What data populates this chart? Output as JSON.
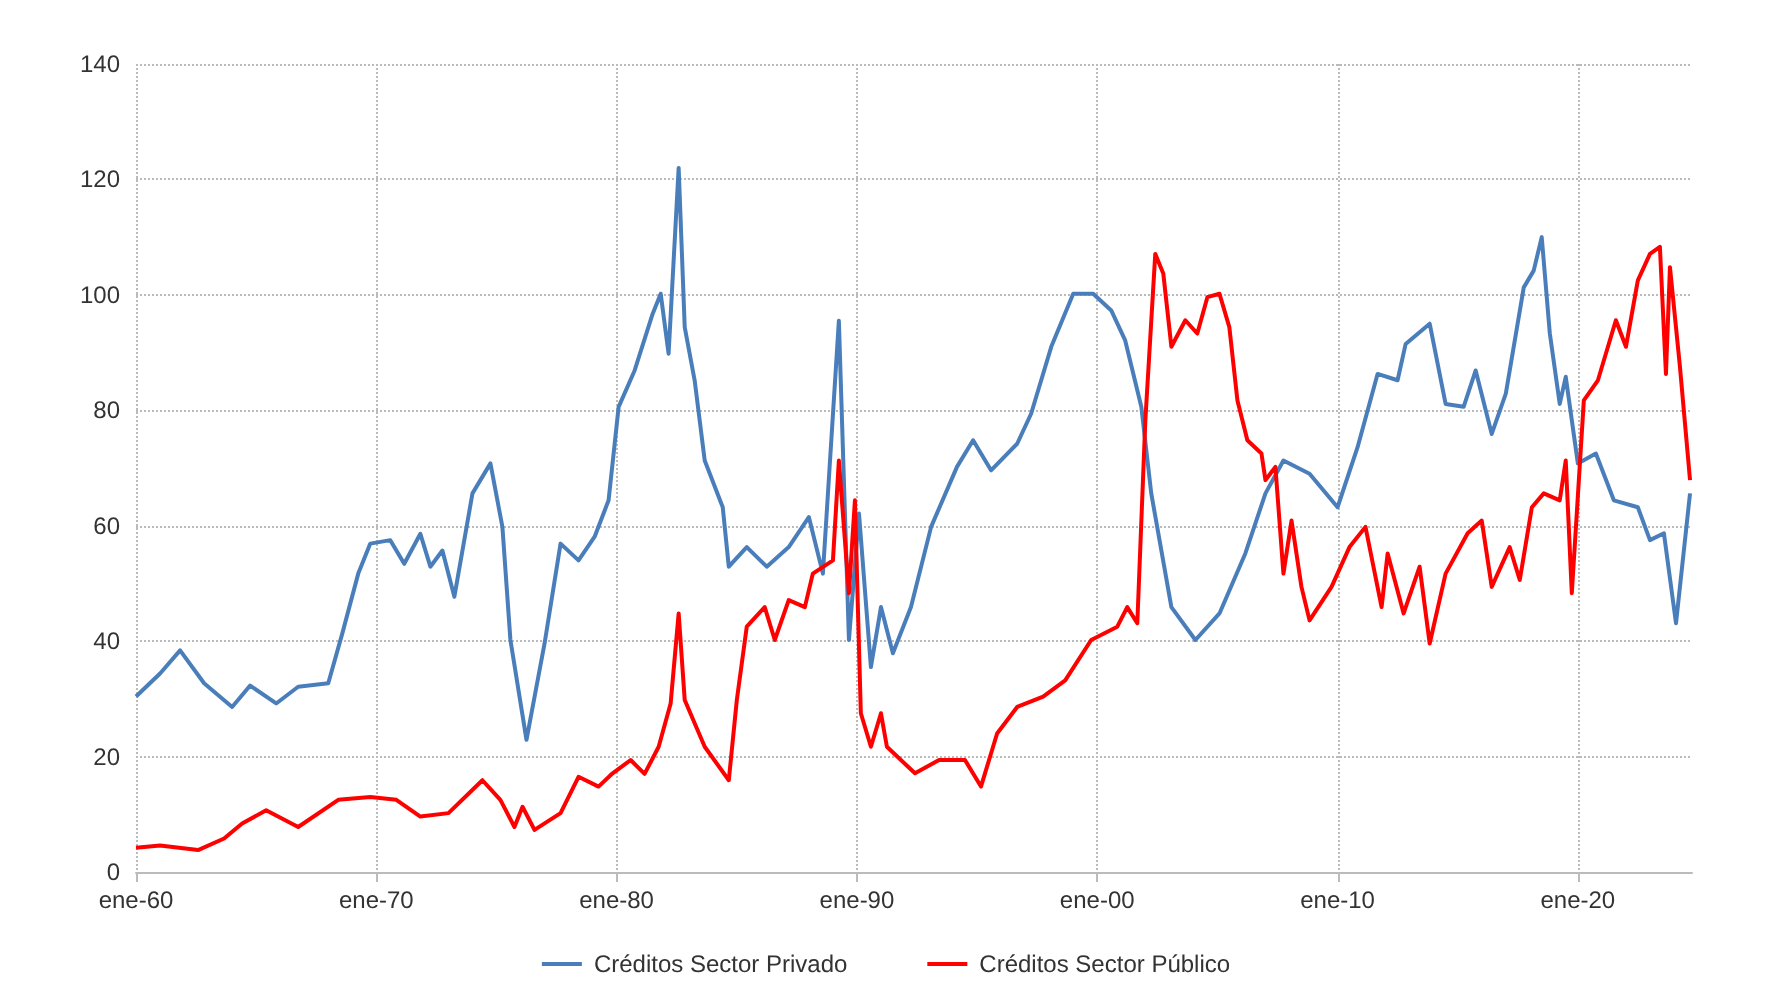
{
  "chart_data": {
    "type": "line",
    "xlim": [
      "1960-01",
      "2024-10"
    ],
    "xticks": [
      {
        "value": "1960-01",
        "label": "ene-60"
      },
      {
        "value": "1970-01",
        "label": "ene-70"
      },
      {
        "value": "1980-01",
        "label": "ene-80"
      },
      {
        "value": "1990-01",
        "label": "ene-90"
      },
      {
        "value": "2000-01",
        "label": "ene-00"
      },
      {
        "value": "2010-01",
        "label": "ene-10"
      },
      {
        "value": "2020-01",
        "label": "ene-20"
      }
    ],
    "ylim": [
      0,
      140
    ],
    "yticks": [
      0,
      20,
      40,
      60,
      80,
      100,
      120,
      140
    ],
    "grid": true,
    "legend": "bottom",
    "line_style": "solid",
    "series": [
      {
        "name": "Créditos Sector Privado",
        "color": "#4a7ebb",
        "x": [
          "1960-01",
          "1961-01",
          "1961-11",
          "1962-11",
          "1964-01",
          "1964-10",
          "1965-11",
          "1966-10",
          "1968-01",
          "1968-08",
          "1969-04",
          "1969-10",
          "1970-08",
          "1971-03",
          "1971-11",
          "1972-04",
          "1972-10",
          "1973-04",
          "1974-01",
          "1974-10",
          "1975-04",
          "1975-08",
          "1976-04",
          "1977-01",
          "1977-09",
          "1978-06",
          "1979-02",
          "1979-09",
          "1980-02",
          "1980-10",
          "1981-07",
          "1981-11",
          "1982-03",
          "1982-08",
          "1982-11",
          "1983-04",
          "1983-09",
          "1984-06",
          "1984-09",
          "1985-06",
          "1986-04",
          "1987-03",
          "1988-01",
          "1988-08",
          "1989-04",
          "1989-09",
          "1990-02",
          "1990-08",
          "1991-01",
          "1991-07",
          "1992-04",
          "1993-02",
          "1994-03",
          "1994-11",
          "1995-08",
          "1996-09",
          "1997-04",
          "1998-02",
          "1999-01",
          "1999-11",
          "2000-08",
          "2001-03",
          "2001-11",
          "2002-04",
          "2003-02",
          "2004-02",
          "2005-02",
          "2006-03",
          "2007-01",
          "2007-10",
          "2008-11",
          "2010-01",
          "2010-11",
          "2011-09",
          "2012-07",
          "2012-11",
          "2013-11",
          "2014-07",
          "2015-04",
          "2015-10",
          "2016-06",
          "2017-01",
          "2017-10",
          "2018-03",
          "2018-07",
          "2018-11",
          "2019-04",
          "2019-07",
          "2020-01",
          "2020-10",
          "2021-07",
          "2022-07",
          "2023-01",
          "2023-08",
          "2024-02",
          "2024-09"
        ],
        "values": [
          30.4,
          34.4,
          38.4,
          32.7,
          28.6,
          32.3,
          29.2,
          32.1,
          32.7,
          41.3,
          51.7,
          56.9,
          57.5,
          53.4,
          58.6,
          52.9,
          55.7,
          47.7,
          65.6,
          70.8,
          59.8,
          40.2,
          22.9,
          39.6,
          56.9,
          54,
          58.1,
          64.4,
          80.6,
          86.9,
          96.7,
          100.2,
          89.8,
          122,
          94.4,
          85.2,
          71.3,
          63.2,
          52.9,
          56.3,
          52.9,
          56.3,
          61.5,
          51.7,
          95.5,
          40.2,
          62.1,
          35.5,
          45.9,
          37.9,
          45.9,
          59.8,
          70.2,
          74.8,
          69.6,
          74.2,
          79.4,
          91,
          100.2,
          100.2,
          97.3,
          92.1,
          80.6,
          65.6,
          45.9,
          40.2,
          44.8,
          55.2,
          65.6,
          71.3,
          69,
          63.2,
          73.6,
          86.3,
          85.2,
          91.5,
          95,
          81.1,
          80.6,
          86.9,
          75.9,
          82.9,
          101.3,
          104.2,
          110,
          93.3,
          81.1,
          85.8,
          70.8,
          72.5,
          64.4,
          63.2,
          57.5,
          58.7,
          43.1,
          65.6
        ]
      },
      {
        "name": "Créditos Sector Público",
        "color": "#ff0000",
        "x": [
          "1960-01",
          "1961-01",
          "1962-08",
          "1963-09",
          "1964-06",
          "1965-06",
          "1966-10",
          "1968-06",
          "1969-10",
          "1970-11",
          "1971-11",
          "1973-01",
          "1974-06",
          "1975-03",
          "1975-10",
          "1976-02",
          "1976-08",
          "1977-09",
          "1978-06",
          "1979-04",
          "1979-11",
          "1980-08",
          "1981-03",
          "1981-10",
          "1982-04",
          "1982-08",
          "1982-11",
          "1983-09",
          "1984-09",
          "1985-01",
          "1985-06",
          "1986-03",
          "1986-08",
          "1987-03",
          "1987-11",
          "1988-03",
          "1989-01",
          "1989-04",
          "1989-09",
          "1989-12",
          "1990-03",
          "1990-08",
          "1991-01",
          "1991-04",
          "1992-06",
          "1993-06",
          "1994-07",
          "1995-03",
          "1995-11",
          "1996-09",
          "1997-10",
          "1998-09",
          "1999-10",
          "2000-11",
          "2001-04",
          "2001-09",
          "2002-01",
          "2002-06",
          "2002-10",
          "2003-02",
          "2003-09",
          "2004-03",
          "2004-08",
          "2005-02",
          "2005-07",
          "2005-11",
          "2006-04",
          "2006-11",
          "2007-01",
          "2007-06",
          "2007-10",
          "2008-02",
          "2008-07",
          "2008-11",
          "2009-10",
          "2010-07",
          "2011-03",
          "2011-11",
          "2012-02",
          "2012-10",
          "2013-06",
          "2013-11",
          "2014-07",
          "2015-06",
          "2016-01",
          "2016-06",
          "2017-03",
          "2017-08",
          "2018-02",
          "2018-08",
          "2019-04",
          "2019-07",
          "2019-10",
          "2020-04",
          "2020-11",
          "2021-08",
          "2022-01",
          "2022-07",
          "2023-01",
          "2023-06",
          "2023-09",
          "2023-11",
          "2024-04",
          "2024-09"
        ],
        "values": [
          4.2,
          4.6,
          3.8,
          5.8,
          8.4,
          10.7,
          7.8,
          12.5,
          13,
          12.5,
          9.6,
          10.2,
          15.9,
          12.5,
          7.8,
          11.3,
          7.3,
          10.2,
          16.5,
          14.8,
          17.1,
          19.4,
          17,
          21.7,
          29.2,
          44.8,
          29.8,
          21.7,
          15.9,
          29.8,
          42.5,
          45.9,
          40.2,
          47.1,
          45.9,
          51.7,
          54,
          71.3,
          48.3,
          64.4,
          27.5,
          21.7,
          27.5,
          21.7,
          17.1,
          19.4,
          19.4,
          14.8,
          24,
          28.6,
          30.4,
          33.2,
          40.2,
          42.5,
          45.9,
          43.1,
          78.2,
          107.1,
          103.7,
          91,
          95.6,
          93.3,
          99.6,
          100.2,
          94.4,
          81.7,
          74.8,
          72.5,
          67.9,
          70.2,
          51.7,
          60.9,
          49.4,
          43.6,
          49.4,
          56.3,
          59.8,
          45.9,
          55.2,
          44.8,
          52.9,
          39.6,
          51.7,
          58.7,
          60.9,
          49.4,
          56.3,
          50.6,
          63.2,
          65.6,
          64.4,
          71.3,
          48.3,
          81.7,
          85.2,
          95.6,
          91,
          102.5,
          107.1,
          108.3,
          86.3,
          104.8,
          87.5,
          67.9
        ]
      }
    ]
  }
}
